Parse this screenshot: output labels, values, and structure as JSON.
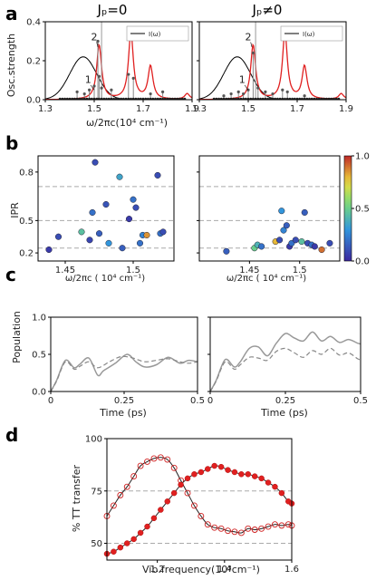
{
  "panel_labels": {
    "a": "a",
    "b": "b",
    "c": "c",
    "d": "d"
  },
  "chart_data": [
    {
      "panel": "a",
      "type": "line",
      "title_left": "Jₚ=0",
      "title_right": "Jₚ≠0",
      "ylabel": "Osc.strength",
      "xlabel": "ω/2πc(10⁴ cm⁻¹)",
      "legend": "I(ω)",
      "xlim": [
        1.3,
        1.9
      ],
      "xticks_left": [
        "1.3",
        "1.5",
        "1.7",
        "1.9"
      ],
      "xticks_right": [
        "1.3",
        "1.5",
        "1.7",
        "1.9"
      ],
      "ylim": [
        0,
        0.4
      ],
      "yticks": [
        "0.0",
        "0.2",
        "0.4"
      ],
      "annotations": [
        "1",
        "2"
      ],
      "gaussian": {
        "center": 1.455,
        "height": 0.22,
        "sigma": 0.055
      },
      "vline": 1.53,
      "spectrum_peaks": [
        [
          1.52,
          0.28
        ],
        [
          1.65,
          0.34
        ],
        [
          1.73,
          0.17
        ],
        [
          1.88,
          0.03
        ]
      ],
      "sticks_left": [
        [
          1.43,
          0.04
        ],
        [
          1.46,
          0.03
        ],
        [
          1.48,
          0.05
        ],
        [
          1.5,
          0.07
        ],
        [
          1.515,
          0.3
        ],
        [
          1.52,
          0.12
        ],
        [
          1.53,
          0.06
        ],
        [
          1.57,
          0.05
        ],
        [
          1.64,
          0.13
        ],
        [
          1.66,
          0.11
        ],
        [
          1.73,
          0.03
        ],
        [
          1.78,
          0.04
        ]
      ],
      "sticks_right": [
        [
          1.4,
          0.02
        ],
        [
          1.43,
          0.03
        ],
        [
          1.46,
          0.04
        ],
        [
          1.48,
          0.03
        ],
        [
          1.5,
          0.05
        ],
        [
          1.52,
          0.24
        ],
        [
          1.54,
          0.06
        ],
        [
          1.57,
          0.04
        ],
        [
          1.6,
          0.03
        ],
        [
          1.64,
          0.05
        ],
        [
          1.66,
          0.04
        ],
        [
          1.73,
          0.02
        ]
      ]
    },
    {
      "panel": "b",
      "type": "scatter",
      "ylabel": "IPR",
      "xlabel": "ω/2πc ( 10⁴ cm⁻¹)",
      "xlim_left": [
        1.43,
        1.53
      ],
      "xticks_left": [
        "1.45",
        "1.5"
      ],
      "xlim_right": [
        1.4,
        1.54
      ],
      "xticks_right": [
        "1.45",
        "1.5"
      ],
      "ylim": [
        0.25,
        0.9
      ],
      "yticks": [
        "0.2",
        "0.5",
        "0.8"
      ],
      "hlines": [
        0.33,
        0.5,
        0.71
      ],
      "colorbar_ticks": [
        "0.0",
        "0.5",
        "1.0"
      ],
      "points_left": [
        [
          1.438,
          0.32,
          0.05
        ],
        [
          1.445,
          0.4,
          0.1
        ],
        [
          1.462,
          0.43,
          0.45
        ],
        [
          1.468,
          0.38,
          0.08
        ],
        [
          1.47,
          0.55,
          0.2
        ],
        [
          1.472,
          0.86,
          0.1
        ],
        [
          1.475,
          0.42,
          0.15
        ],
        [
          1.48,
          0.6,
          0.12
        ],
        [
          1.482,
          0.36,
          0.3
        ],
        [
          1.49,
          0.77,
          0.35
        ],
        [
          1.492,
          0.33,
          0.15
        ],
        [
          1.497,
          0.51,
          0.05
        ],
        [
          1.5,
          0.63,
          0.2
        ],
        [
          1.502,
          0.58,
          0.1
        ],
        [
          1.505,
          0.36,
          0.2
        ],
        [
          1.507,
          0.41,
          0.25
        ],
        [
          1.51,
          0.41,
          0.85
        ],
        [
          1.518,
          0.78,
          0.1
        ],
        [
          1.52,
          0.42,
          0.2
        ],
        [
          1.522,
          0.43,
          0.1
        ]
      ],
      "points_right": [
        [
          1.427,
          0.31,
          0.15
        ],
        [
          1.455,
          0.33,
          0.5
        ],
        [
          1.458,
          0.35,
          0.4
        ],
        [
          1.462,
          0.34,
          0.2
        ],
        [
          1.476,
          0.37,
          0.8
        ],
        [
          1.48,
          0.38,
          0.1
        ],
        [
          1.482,
          0.56,
          0.3
        ],
        [
          1.484,
          0.44,
          0.25
        ],
        [
          1.487,
          0.47,
          0.15
        ],
        [
          1.49,
          0.34,
          0.05
        ],
        [
          1.492,
          0.36,
          0.2
        ],
        [
          1.496,
          0.38,
          0.1
        ],
        [
          1.502,
          0.37,
          0.45
        ],
        [
          1.505,
          0.55,
          0.15
        ],
        [
          1.508,
          0.36,
          0.1
        ],
        [
          1.512,
          0.35,
          0.2
        ],
        [
          1.515,
          0.34,
          0.05
        ],
        [
          1.522,
          0.32,
          0.9
        ],
        [
          1.53,
          0.36,
          0.1
        ]
      ]
    },
    {
      "panel": "c",
      "type": "line",
      "ylabel": "Population",
      "xlabel": "Time (ps)",
      "xlim": [
        0,
        0.5
      ],
      "xticks": [
        "0",
        "0.25",
        "0.5"
      ],
      "ylim": [
        0,
        1.0
      ],
      "yticks": [
        "0.0",
        "0.5",
        "1.0"
      ],
      "left_solid": [
        [
          0,
          0
        ],
        [
          0.02,
          0.15
        ],
        [
          0.05,
          0.42
        ],
        [
          0.08,
          0.32
        ],
        [
          0.1,
          0.37
        ],
        [
          0.13,
          0.45
        ],
        [
          0.16,
          0.22
        ],
        [
          0.18,
          0.28
        ],
        [
          0.22,
          0.38
        ],
        [
          0.26,
          0.5
        ],
        [
          0.29,
          0.4
        ],
        [
          0.32,
          0.33
        ],
        [
          0.36,
          0.36
        ],
        [
          0.4,
          0.46
        ],
        [
          0.44,
          0.38
        ],
        [
          0.47,
          0.42
        ],
        [
          0.5,
          0.4
        ]
      ],
      "left_dashed": [
        [
          0,
          0
        ],
        [
          0.02,
          0.14
        ],
        [
          0.05,
          0.4
        ],
        [
          0.08,
          0.3
        ],
        [
          0.1,
          0.34
        ],
        [
          0.13,
          0.4
        ],
        [
          0.16,
          0.32
        ],
        [
          0.2,
          0.4
        ],
        [
          0.24,
          0.47
        ],
        [
          0.28,
          0.45
        ],
        [
          0.32,
          0.4
        ],
        [
          0.36,
          0.42
        ],
        [
          0.4,
          0.44
        ],
        [
          0.44,
          0.4
        ],
        [
          0.47,
          0.38
        ],
        [
          0.5,
          0.4
        ]
      ],
      "right_solid": [
        [
          0,
          0
        ],
        [
          0.02,
          0.15
        ],
        [
          0.05,
          0.43
        ],
        [
          0.08,
          0.33
        ],
        [
          0.1,
          0.4
        ],
        [
          0.13,
          0.58
        ],
        [
          0.16,
          0.6
        ],
        [
          0.19,
          0.48
        ],
        [
          0.22,
          0.65
        ],
        [
          0.25,
          0.78
        ],
        [
          0.28,
          0.72
        ],
        [
          0.31,
          0.68
        ],
        [
          0.34,
          0.8
        ],
        [
          0.37,
          0.68
        ],
        [
          0.4,
          0.74
        ],
        [
          0.43,
          0.66
        ],
        [
          0.46,
          0.7
        ],
        [
          0.49,
          0.65
        ],
        [
          0.5,
          0.64
        ]
      ],
      "right_dashed": [
        [
          0,
          0
        ],
        [
          0.02,
          0.14
        ],
        [
          0.05,
          0.4
        ],
        [
          0.08,
          0.3
        ],
        [
          0.1,
          0.36
        ],
        [
          0.13,
          0.46
        ],
        [
          0.16,
          0.45
        ],
        [
          0.19,
          0.42
        ],
        [
          0.22,
          0.54
        ],
        [
          0.25,
          0.58
        ],
        [
          0.28,
          0.52
        ],
        [
          0.31,
          0.46
        ],
        [
          0.34,
          0.55
        ],
        [
          0.37,
          0.5
        ],
        [
          0.4,
          0.58
        ],
        [
          0.43,
          0.49
        ],
        [
          0.46,
          0.52
        ],
        [
          0.49,
          0.44
        ],
        [
          0.5,
          0.43
        ]
      ]
    },
    {
      "panel": "d",
      "type": "line",
      "ylabel": "% TT transfer",
      "xlabel": "Vib.frequency(10³cm⁻¹)",
      "xlim": [
        1.05,
        1.6
      ],
      "xticks": [
        "1.2",
        "1.4",
        "1.6"
      ],
      "ylim": [
        42,
        100
      ],
      "yticks": [
        "50",
        "75",
        "100"
      ],
      "hlines": [
        50,
        75
      ],
      "series_open": [
        [
          1.05,
          63
        ],
        [
          1.07,
          68
        ],
        [
          1.09,
          73
        ],
        [
          1.11,
          77
        ],
        [
          1.13,
          82
        ],
        [
          1.15,
          87
        ],
        [
          1.17,
          89
        ],
        [
          1.19,
          90.5
        ],
        [
          1.21,
          91
        ],
        [
          1.23,
          90
        ],
        [
          1.25,
          86
        ],
        [
          1.27,
          80
        ],
        [
          1.29,
          74
        ],
        [
          1.31,
          68
        ],
        [
          1.33,
          63
        ],
        [
          1.35,
          59
        ],
        [
          1.37,
          57.5
        ],
        [
          1.39,
          57
        ],
        [
          1.41,
          56
        ],
        [
          1.43,
          55.5
        ],
        [
          1.45,
          55
        ],
        [
          1.47,
          57
        ],
        [
          1.49,
          56.5
        ],
        [
          1.51,
          57
        ],
        [
          1.53,
          58
        ],
        [
          1.55,
          59
        ],
        [
          1.57,
          58.5
        ],
        [
          1.59,
          59
        ],
        [
          1.6,
          58.5
        ]
      ],
      "series_filled": [
        [
          1.05,
          45
        ],
        [
          1.07,
          46
        ],
        [
          1.09,
          48
        ],
        [
          1.11,
          50
        ],
        [
          1.13,
          52
        ],
        [
          1.15,
          55
        ],
        [
          1.17,
          58
        ],
        [
          1.19,
          62
        ],
        [
          1.21,
          66
        ],
        [
          1.23,
          70
        ],
        [
          1.25,
          74
        ],
        [
          1.27,
          78
        ],
        [
          1.29,
          81
        ],
        [
          1.31,
          83
        ],
        [
          1.33,
          84
        ],
        [
          1.35,
          85.5
        ],
        [
          1.37,
          87
        ],
        [
          1.39,
          86.5
        ],
        [
          1.41,
          85
        ],
        [
          1.43,
          84
        ],
        [
          1.45,
          83
        ],
        [
          1.47,
          83
        ],
        [
          1.49,
          82
        ],
        [
          1.51,
          81
        ],
        [
          1.53,
          79
        ],
        [
          1.55,
          77
        ],
        [
          1.57,
          74
        ],
        [
          1.59,
          70
        ],
        [
          1.6,
          69
        ]
      ]
    }
  ]
}
